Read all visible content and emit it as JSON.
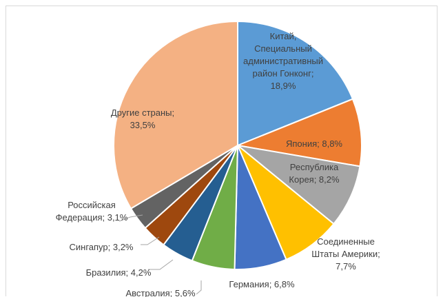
{
  "chart_data": {
    "type": "pie",
    "slices": [
      {
        "label": "Китай, Специальный административный район Гонконг",
        "value": 18.9,
        "display": "18,9%",
        "color": "#5B9BD5"
      },
      {
        "label": "Япония",
        "value": 8.8,
        "display": "8,8%",
        "color": "#ED7D31"
      },
      {
        "label": "Республика Корея",
        "value": 8.2,
        "display": "8,2%",
        "color": "#A5A5A5"
      },
      {
        "label": "Соединенные Штаты Америки",
        "value": 7.7,
        "display": "7,7%",
        "color": "#FFC000"
      },
      {
        "label": "Германия",
        "value": 6.8,
        "display": "6,8%",
        "color": "#4472C4"
      },
      {
        "label": "Австралия",
        "value": 5.6,
        "display": "5,6%",
        "color": "#70AD47"
      },
      {
        "label": "Бразилия",
        "value": 4.2,
        "display": "4,2%",
        "color": "#255E91"
      },
      {
        "label": "Сингапур",
        "value": 3.2,
        "display": "3,2%",
        "color": "#9E480E"
      },
      {
        "label": "Российская Федерация",
        "value": 3.1,
        "display": "3,1%",
        "color": "#636363"
      },
      {
        "label": "Другие страны",
        "value": 33.5,
        "display": "33,5%",
        "color": "#F4B183"
      }
    ],
    "data_labels": [
      [
        "Китай,",
        "Специальный",
        "административный",
        "район Гонконг;",
        "18,9%"
      ],
      [
        "Япония; 8,8%"
      ],
      [
        "Республика",
        "Корея; 8,2%"
      ],
      [
        "Соединенные",
        "Штаты Америки;",
        "7,7%"
      ],
      [
        "Германия; 6,8%"
      ],
      [
        "Австралия; 5,6%"
      ],
      [
        "Бразилия; 4,2%"
      ],
      [
        "Сингапур; 3,2%"
      ],
      [
        "Российская",
        "Федерация; 3,1%"
      ],
      [
        "Другие страны;",
        "33,5%"
      ]
    ]
  }
}
